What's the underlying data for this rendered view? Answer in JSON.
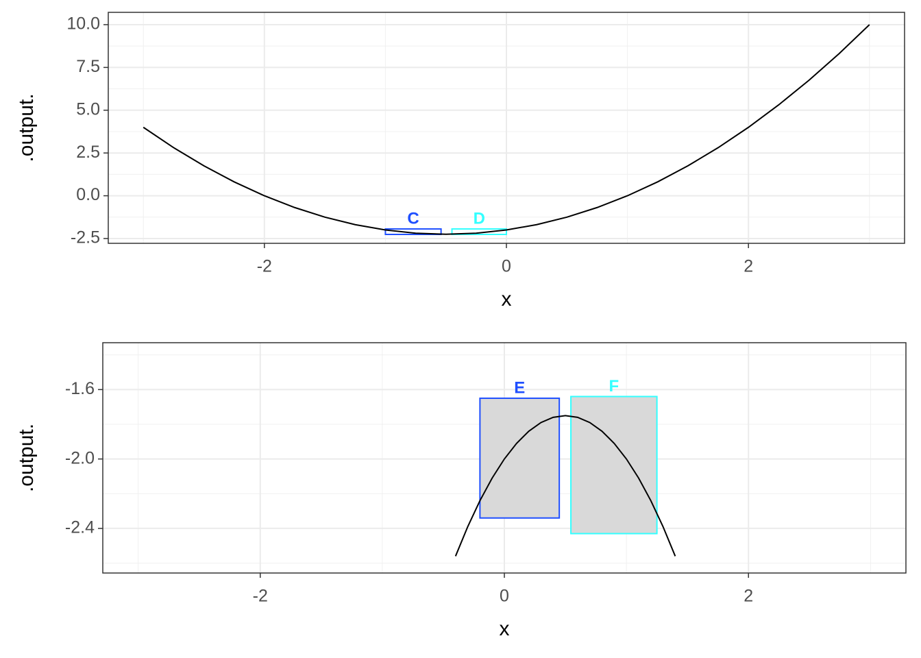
{
  "chart_data": [
    {
      "type": "line",
      "x_label": "x",
      "y_label": ".output.",
      "xlim": [
        -3.29,
        3.29
      ],
      "ylim": [
        -2.78,
        10.72
      ],
      "xticks": [
        -2,
        0,
        2
      ],
      "yticks": [
        {
          "value": 10,
          "label": "10.0"
        },
        7.5,
        {
          "value": 5,
          "label": "5.0"
        },
        2.5,
        {
          "value": 0,
          "label": "0.0"
        },
        -2.5
      ],
      "grid": true,
      "series": [
        {
          "color": "#000000",
          "x": [
            -3,
            -2.75,
            -2.5,
            -2.25,
            -2,
            -1.75,
            -1.5,
            -1.25,
            -1,
            -0.75,
            -0.5,
            -0.25,
            0,
            0.25,
            0.5,
            0.75,
            1,
            1.25,
            1.5,
            1.75,
            2,
            2.25,
            2.5,
            2.75,
            3
          ],
          "values": [
            4,
            2.8125,
            1.75,
            0.8125,
            0,
            -0.6875,
            -1.25,
            -1.6875,
            -2,
            -2.1875,
            -2.25,
            -2.1875,
            -2,
            -1.6875,
            -1.25,
            -0.6875,
            0,
            0.8125,
            1.75,
            2.8125,
            4,
            5.3125,
            6.75,
            8.3125,
            10
          ]
        }
      ],
      "boxes": [
        {
          "label": "C",
          "color": "#1f4fff",
          "xmin": -1.0,
          "xmax": -0.54,
          "ymin": -2.26,
          "ymax": -1.94
        },
        {
          "label": "D",
          "color": "#33ffff",
          "xmin": -0.45,
          "xmax": 0.0,
          "ymin": -2.26,
          "ymax": -1.94
        }
      ]
    },
    {
      "type": "line",
      "x_label": "x",
      "y_label": ".output.",
      "xlim": [
        -3.29,
        3.29
      ],
      "ylim": [
        -2.657,
        -1.33
      ],
      "xticks": [
        -2,
        0,
        2
      ],
      "yticks": [
        -1.6,
        {
          "value": -2,
          "label": "-2.0"
        },
        -2.4
      ],
      "grid": true,
      "series": [
        {
          "color": "#000000",
          "x": [
            -0.4,
            -0.3,
            -0.2,
            -0.1,
            0,
            0.1,
            0.2,
            0.3,
            0.4,
            0.5,
            0.6,
            0.7,
            0.8,
            0.9,
            1.0,
            1.1,
            1.2,
            1.3,
            1.4
          ],
          "values": [
            -2.56,
            -2.39,
            -2.24,
            -2.11,
            -2,
            -1.91,
            -1.84,
            -1.79,
            -1.76,
            -1.75,
            -1.76,
            -1.79,
            -1.84,
            -1.91,
            -2,
            -2.11,
            -2.24,
            -2.39,
            -2.56
          ]
        }
      ],
      "boxes": [
        {
          "label": "E",
          "color": "#1f4fff",
          "fill": "#d9d9d9",
          "xmin": -0.2,
          "xmax": 0.45,
          "ymin": -2.34,
          "ymax": -1.65
        },
        {
          "label": "F",
          "color": "#33ffff",
          "fill": "#d9d9d9",
          "xmin": 0.545,
          "xmax": 1.25,
          "ymin": -2.43,
          "ymax": -1.64
        }
      ]
    }
  ]
}
